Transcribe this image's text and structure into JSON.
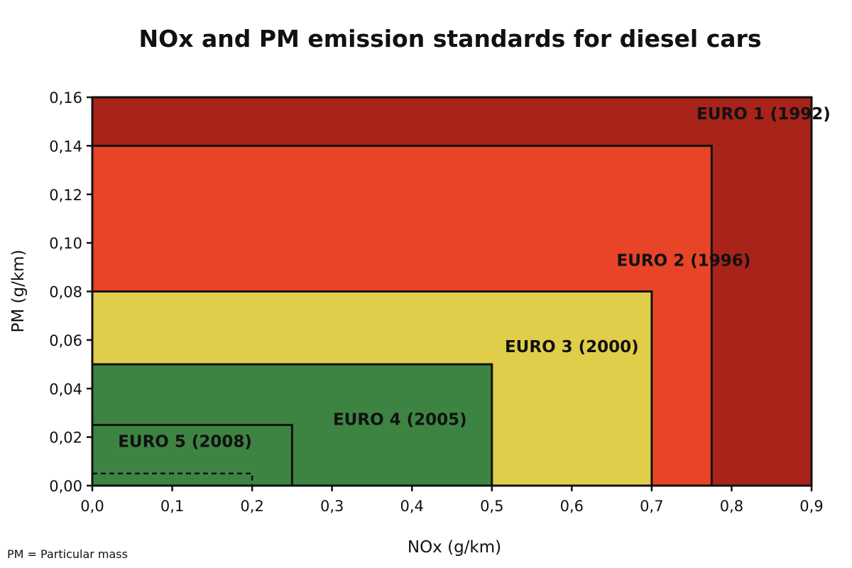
{
  "chart_data": {
    "type": "area",
    "title": "NOx and PM emission standards for diesel cars",
    "xlabel": "NOx (g/km)",
    "ylabel": "PM (g/km)",
    "xlim": [
      0,
      0.9
    ],
    "ylim": [
      0,
      0.16
    ],
    "x_ticks": [
      "0,0",
      "0,1",
      "0,2",
      "0,3",
      "0,4",
      "0,5",
      "0,6",
      "0,7",
      "0,8",
      "0,9"
    ],
    "y_ticks": [
      "0,00",
      "0,02",
      "0,04",
      "0,06",
      "0,08",
      "0,10",
      "0,12",
      "0,14",
      "0,16"
    ],
    "series": [
      {
        "name": "EURO 1 (1992)",
        "nox": 0.9,
        "pm": 0.16,
        "color": "#A8231A"
      },
      {
        "name": "EURO 2 (1996)",
        "nox": 0.775,
        "pm": 0.14,
        "color": "#E84427"
      },
      {
        "name": "EURO 3 (2000)",
        "nox": 0.7,
        "pm": 0.08,
        "color": "#E0CE4A"
      },
      {
        "name": "EURO 4 (2005)",
        "nox": 0.5,
        "pm": 0.05,
        "color": "#3D8442"
      },
      {
        "name": "EURO 5 (2008)",
        "nox": 0.25,
        "pm": 0.025,
        "color": "#3D8442"
      }
    ],
    "dashed_limit": {
      "nox": 0.2,
      "pm": 0.005
    },
    "note": "PM = Particular mass"
  }
}
